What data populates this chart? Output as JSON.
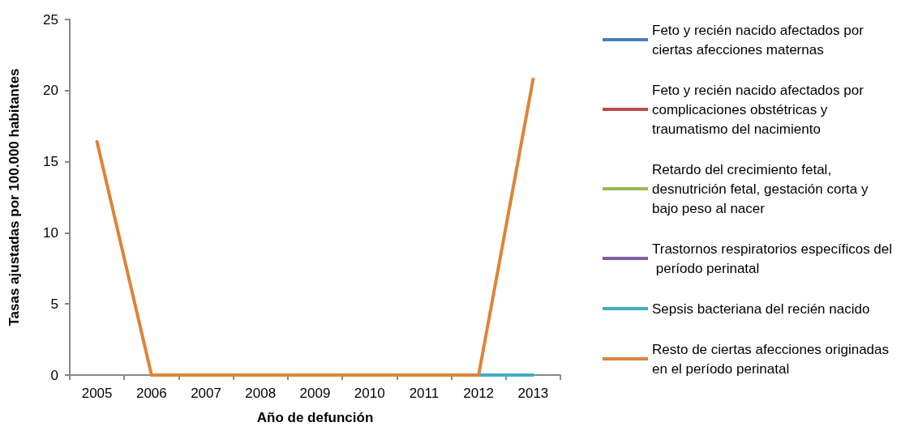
{
  "chart_data": {
    "type": "line",
    "xlabel": "Año de defunción",
    "ylabel": "Tasas ajustadas por 100.000 habitantes",
    "categories": [
      "2005",
      "2006",
      "2007",
      "2008",
      "2009",
      "2010",
      "2011",
      "2012",
      "2013"
    ],
    "ylim": [
      0,
      25
    ],
    "yticks": [
      0,
      5,
      10,
      15,
      20,
      25
    ],
    "grid": false,
    "legend": "right",
    "marker": "none",
    "line_style": "solid",
    "series": [
      {
        "name": "Feto y recién nacido afectados por ciertas afecciones maternas",
        "color": "#4a7ebb",
        "values": [
          null,
          null,
          null,
          null,
          null,
          null,
          null,
          null,
          null
        ]
      },
      {
        "name": "Feto y recién nacido afectados por complicaciones obstétricas y traumatismo del nacimiento",
        "color": "#be4b48",
        "values": [
          null,
          null,
          null,
          null,
          null,
          null,
          null,
          null,
          null
        ]
      },
      {
        "name": "Retardo del crecimiento fetal, desnutrición fetal, gestación corta y bajo peso al nacer",
        "color": "#98b954",
        "values": [
          null,
          null,
          null,
          null,
          null,
          null,
          null,
          null,
          null
        ]
      },
      {
        "name": "Trastornos respiratorios específicos del período perinatal",
        "color": "#7d60a0",
        "values": [
          null,
          null,
          null,
          null,
          null,
          null,
          null,
          null,
          null
        ]
      },
      {
        "name": "Sepsis bacteriana del recién nacido",
        "color": "#46aac5",
        "values": [
          null,
          null,
          null,
          null,
          null,
          null,
          null,
          0,
          0
        ]
      },
      {
        "name": "Resto de ciertas afecciones originadas en el período perinatal",
        "color": "#dd8438",
        "values": [
          16.4,
          0,
          0,
          0,
          0,
          0,
          0,
          0,
          20.8
        ]
      }
    ]
  }
}
